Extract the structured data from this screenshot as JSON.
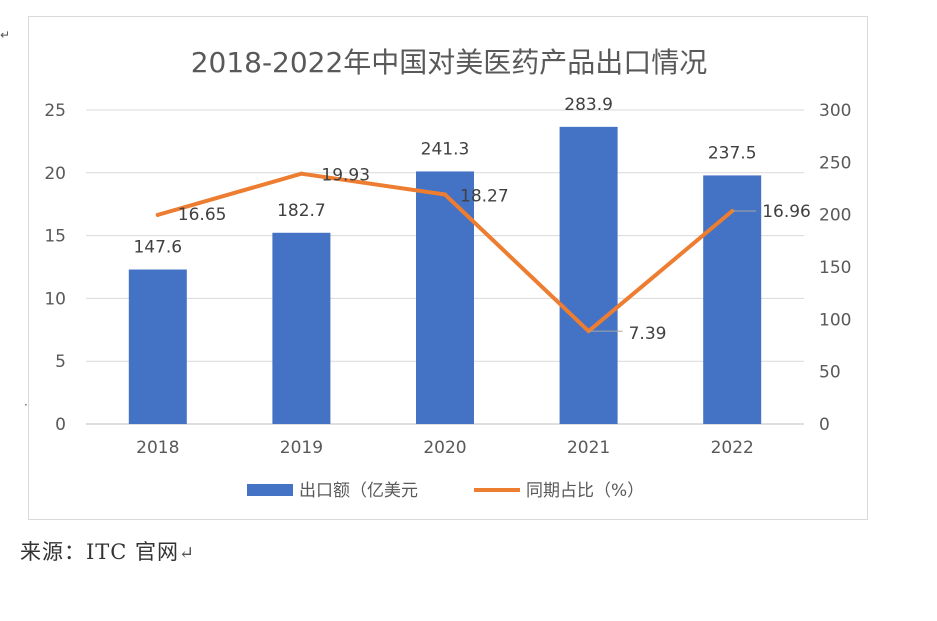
{
  "chart_data": {
    "type": "bar",
    "title": "2018-2022年中国对美医药产品出口情况",
    "categories": [
      "2018",
      "2019",
      "2020",
      "2021",
      "2022"
    ],
    "series": [
      {
        "name": "出口额（亿美元",
        "kind": "bar",
        "axis": "right",
        "color": "#4472c4",
        "values": [
          147.6,
          182.7,
          241.3,
          283.9,
          237.5
        ],
        "labels": [
          "147.6",
          "182.7",
          "241.3",
          "283.9",
          "237.5"
        ]
      },
      {
        "name": "同期占比（%）",
        "kind": "line",
        "axis": "left",
        "color": "#ed7d31",
        "values": [
          16.65,
          19.93,
          18.27,
          7.39,
          16.96
        ],
        "labels": [
          "16.65",
          "19.93",
          "18.27",
          "7.39",
          "16.96"
        ]
      }
    ],
    "left_axis": {
      "min": 0,
      "max": 25,
      "step": 5,
      "ticks": [
        "0",
        "5",
        "10",
        "15",
        "20",
        "25"
      ]
    },
    "right_axis": {
      "min": 0,
      "max": 300,
      "step": 50,
      "ticks": [
        "0",
        "50",
        "100",
        "150",
        "200",
        "250",
        "300"
      ]
    },
    "grid": true,
    "legend_position": "bottom"
  },
  "source": {
    "text": "来源：ITC 官网",
    "return_glyph": "↵"
  },
  "stray_marks": {
    "left_mark": "↵",
    "dot": "·"
  }
}
